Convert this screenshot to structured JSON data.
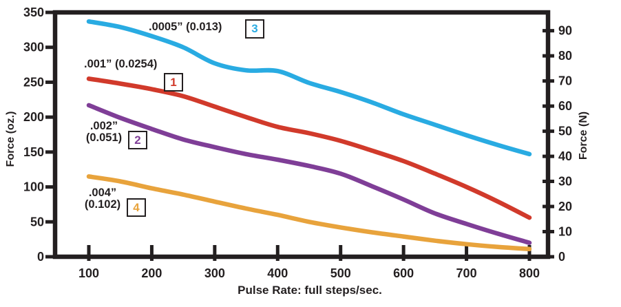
{
  "chart_data": {
    "type": "line",
    "title": "",
    "xlabel": "Pulse Rate: full steps/sec.",
    "ylabel_left": "Force (oz.)",
    "ylabel_right": "Force (N)",
    "x_ticks": [
      100,
      200,
      300,
      400,
      500,
      600,
      700,
      800
    ],
    "y_ticks_left": [
      0,
      50,
      100,
      150,
      200,
      250,
      300,
      350
    ],
    "y_ticks_right": [
      0,
      10,
      20,
      30,
      40,
      50,
      60,
      70,
      80,
      90
    ],
    "xlim": [
      100,
      800
    ],
    "ylim_left": [
      0,
      350
    ],
    "grid": false,
    "legend_position": "inline-labels",
    "axis_color": "#231F20",
    "background_color": "#FFFFFF",
    "x": [
      100,
      150,
      200,
      250,
      300,
      350,
      400,
      450,
      500,
      550,
      600,
      650,
      700,
      750,
      800
    ],
    "series": [
      {
        "name": ".0005” (0.013)",
        "label_line1": ".0005” (0.013)",
        "label_line2": "",
        "tag": "3",
        "color": "#29ABE2",
        "values": [
          337,
          329,
          316,
          300,
          277,
          267,
          266,
          249,
          236,
          221,
          204,
          189,
          174,
          160,
          147
        ]
      },
      {
        "name": ".001” (0.0254)",
        "label_line1": ".001” (0.0254)",
        "label_line2": "",
        "tag": "1",
        "color": "#D13A2B",
        "values": [
          255,
          248,
          240,
          230,
          215,
          200,
          186,
          177,
          166,
          152,
          137,
          119,
          100,
          79,
          56
        ]
      },
      {
        "name": ".002” (0.051)",
        "label_line1": ".002”",
        "label_line2": "(0.051)",
        "tag": "2",
        "color": "#7F3E97",
        "values": [
          217,
          199,
          183,
          168,
          157,
          147,
          139,
          130,
          119,
          101,
          82,
          62,
          47,
          33,
          20
        ]
      },
      {
        "name": ".004” (0.102)",
        "label_line1": ".004”",
        "label_line2": "(0.102)",
        "tag": "4",
        "color": "#E8A33C",
        "values": [
          115,
          108,
          98,
          89,
          79,
          69,
          60,
          50,
          42,
          35,
          29,
          23,
          18,
          14,
          11
        ]
      }
    ]
  }
}
